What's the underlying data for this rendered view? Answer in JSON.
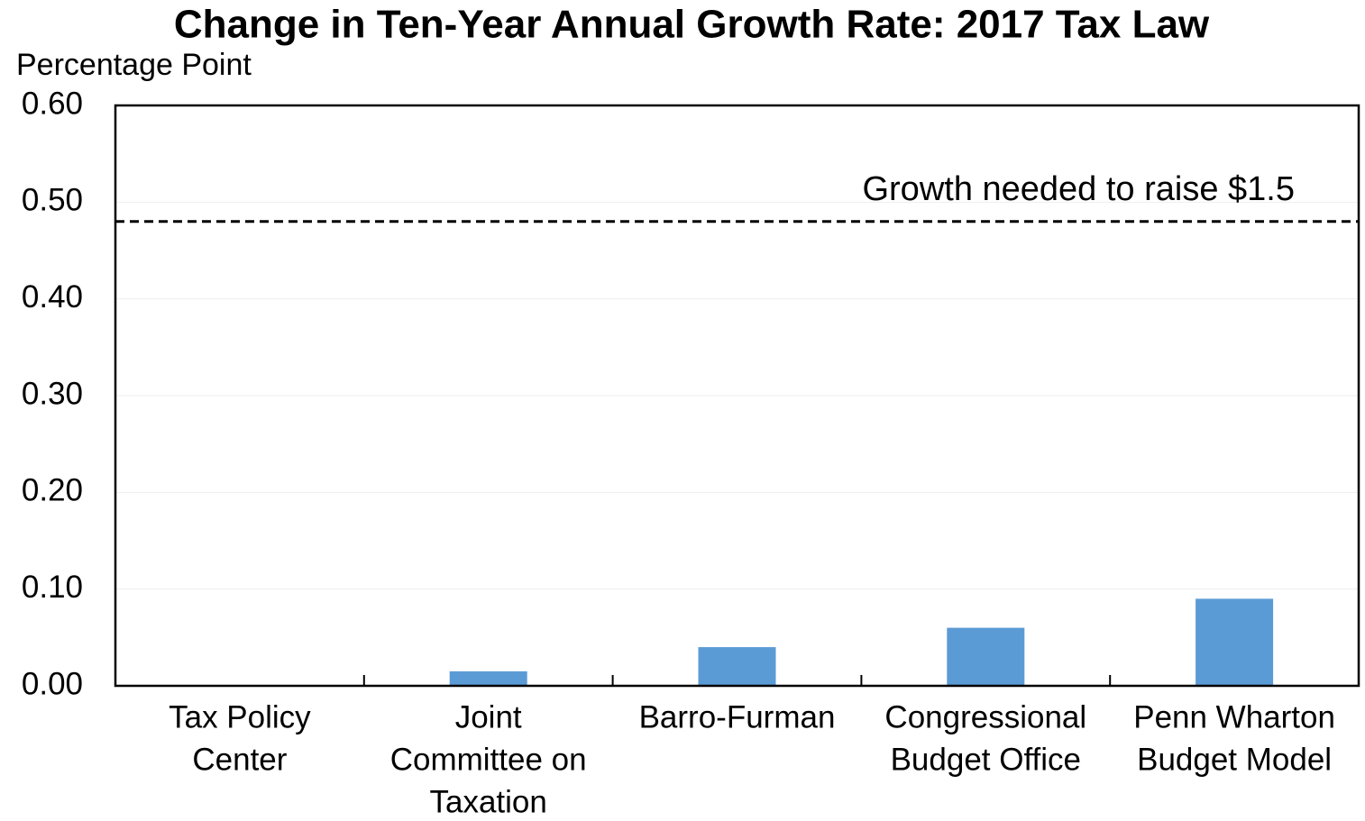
{
  "chart_data": {
    "type": "bar",
    "title": "Change in Ten-Year Annual Growth Rate: 2017 Tax Law",
    "y_label": "Percentage Point",
    "categories": [
      [
        "Tax Policy",
        "Center"
      ],
      [
        "Joint",
        "Committee on",
        "Taxation"
      ],
      [
        "Barro-Furman"
      ],
      [
        "Congressional",
        "Budget Office"
      ],
      [
        "Penn Wharton",
        "Budget Model"
      ]
    ],
    "values": [
      0,
      0.015,
      0.04,
      0.06,
      0.09
    ],
    "color": "#5b9bd5",
    "ylim": [
      0,
      0.6
    ],
    "yticks": [
      {
        "value": 0,
        "label": "0.00"
      },
      {
        "value": 0.1,
        "label": "0.10"
      },
      {
        "value": 0.2,
        "label": "0.20"
      },
      {
        "value": 0.3,
        "label": "0.30"
      },
      {
        "value": 0.4,
        "label": "0.40"
      },
      {
        "value": 0.5,
        "label": "0.50"
      },
      {
        "value": 0.6,
        "label": "0.60"
      }
    ],
    "grid": true,
    "reference_line": {
      "value": 0.48,
      "label": "Growth needed to raise $1.5",
      "style": "dashed"
    }
  }
}
